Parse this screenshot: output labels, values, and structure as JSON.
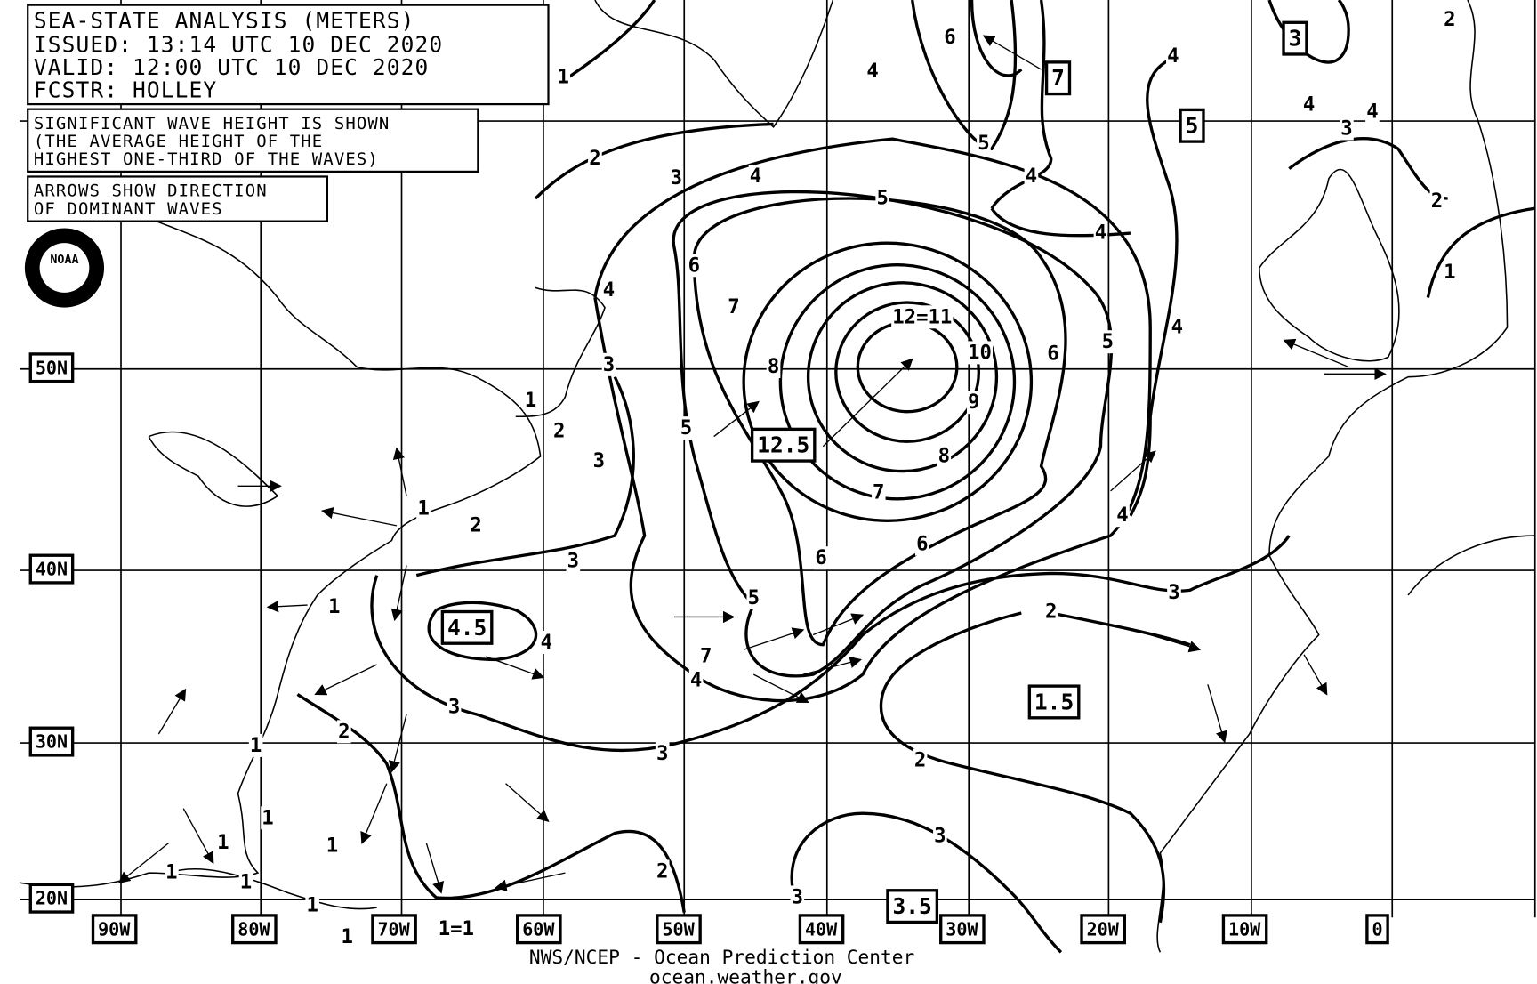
{
  "header": {
    "lines": [
      "SEA-STATE ANALYSIS (METERS)",
      "ISSUED:  13:14 UTC 10 DEC 2020",
      "VALID:   12:00 UTC 10 DEC 2020",
      "FCSTR:   HOLLEY"
    ]
  },
  "notes": {
    "wave_height": [
      "SIGNIFICANT WAVE HEIGHT IS SHOWN",
      "(THE AVERAGE HEIGHT OF THE",
      "HIGHEST ONE-THIRD OF THE WAVES)"
    ],
    "arrows": [
      "ARROWS SHOW DIRECTION",
      "OF DOMINANT WAVES"
    ]
  },
  "logo": "NOAA",
  "lat_labels": [
    "50N",
    "40N",
    "30N",
    "20N"
  ],
  "lon_labels": [
    "90W",
    "80W",
    "70W",
    "60W",
    "50W",
    "40W",
    "30W",
    "20W",
    "10W",
    "0"
  ],
  "contour_labels": [
    "1",
    "2",
    "3",
    "4",
    "4",
    "5",
    "6",
    "5",
    "4",
    "4",
    "4",
    "4",
    "3",
    "4",
    "2",
    "2",
    "1",
    "6",
    "7",
    "8",
    "12=11",
    "10",
    "9",
    "8",
    "7",
    "6",
    "5",
    "4",
    "4",
    "4",
    "3",
    "1",
    "2",
    "3",
    "5",
    "6",
    "6",
    "1",
    "2",
    "3",
    "5",
    "3",
    "2",
    "4",
    "4",
    "7",
    "3",
    "2",
    "3",
    "2",
    "3",
    "2",
    "3",
    "1",
    "1",
    "1",
    "1",
    "1",
    "1",
    "1",
    "1",
    "1",
    "1=1"
  ],
  "boxed_labels": [
    "7",
    "3",
    "5",
    "12.5",
    "4.5",
    "1.5",
    "3.5"
  ],
  "footer": [
    "NWS/NCEP - Ocean Prediction Center",
    "ocean.weather.gov"
  ]
}
